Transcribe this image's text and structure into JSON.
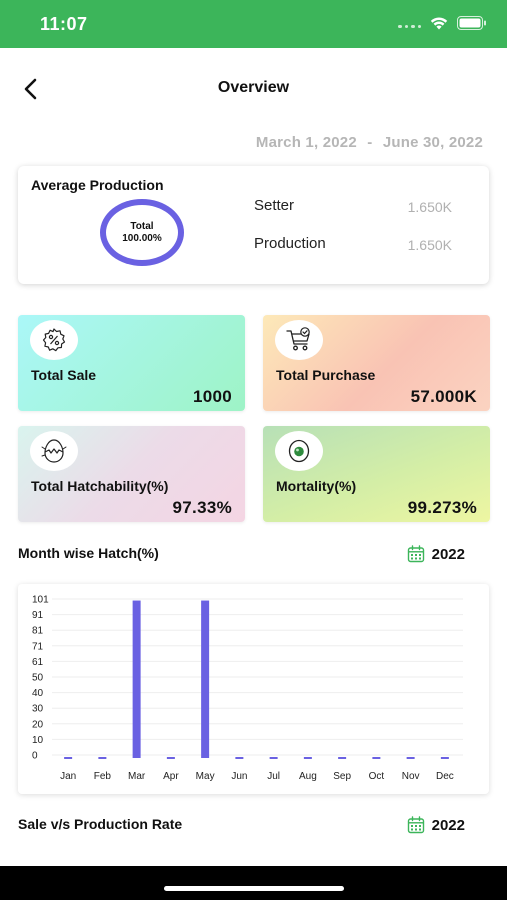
{
  "status_bar": {
    "time": "11:07"
  },
  "header": {
    "title": "Overview"
  },
  "date_range": {
    "start": "March 1, 2022",
    "separator": "-",
    "end": "June 30, 2022"
  },
  "average_production": {
    "title": "Average Production",
    "donut_line1": "Total",
    "donut_line2": "100.00%",
    "rows": [
      {
        "label": "Setter",
        "value": "1.650K"
      },
      {
        "label": "Production",
        "value": "1.650K"
      }
    ]
  },
  "stats": [
    {
      "label": "Total Sale",
      "value": "1000",
      "icon": "percent-badge-icon"
    },
    {
      "label": "Total Purchase",
      "value": "57.000K",
      "icon": "shopping-cart-icon"
    },
    {
      "label": "Total Hatchability(%)",
      "value": "97.33%",
      "icon": "hatching-egg-icon"
    },
    {
      "label": "Mortality(%)",
      "value": "99.273%",
      "icon": "egg-icon"
    }
  ],
  "month_wise": {
    "title": "Month wise Hatch(%)",
    "year": "2022",
    "icon": "calendar-icon"
  },
  "sale_vs_production": {
    "title": "Sale v/s Production Rate",
    "year": "2022",
    "icon": "calendar-icon"
  },
  "colors": {
    "status_bar": "#3cb55a",
    "accent": "#6a61e2",
    "muted_text": "#b6b6b6",
    "calendar": "#3cb55a"
  },
  "chart_data": {
    "type": "bar",
    "title": "",
    "xlabel": "",
    "ylabel": "",
    "categories": [
      "Jan",
      "Feb",
      "Mar",
      "Apr",
      "May",
      "Jun",
      "Jul",
      "Aug",
      "Sep",
      "Oct",
      "Nov",
      "Dec"
    ],
    "values": [
      0,
      0,
      100,
      0,
      100,
      0,
      0,
      0,
      0,
      0,
      0,
      0
    ],
    "y_ticks": [
      "101",
      "91",
      "81",
      "71",
      "61",
      "50",
      "40",
      "30",
      "20",
      "10",
      "0"
    ],
    "ylim": [
      0,
      101
    ],
    "grid": true,
    "color": "#6a61e2"
  }
}
